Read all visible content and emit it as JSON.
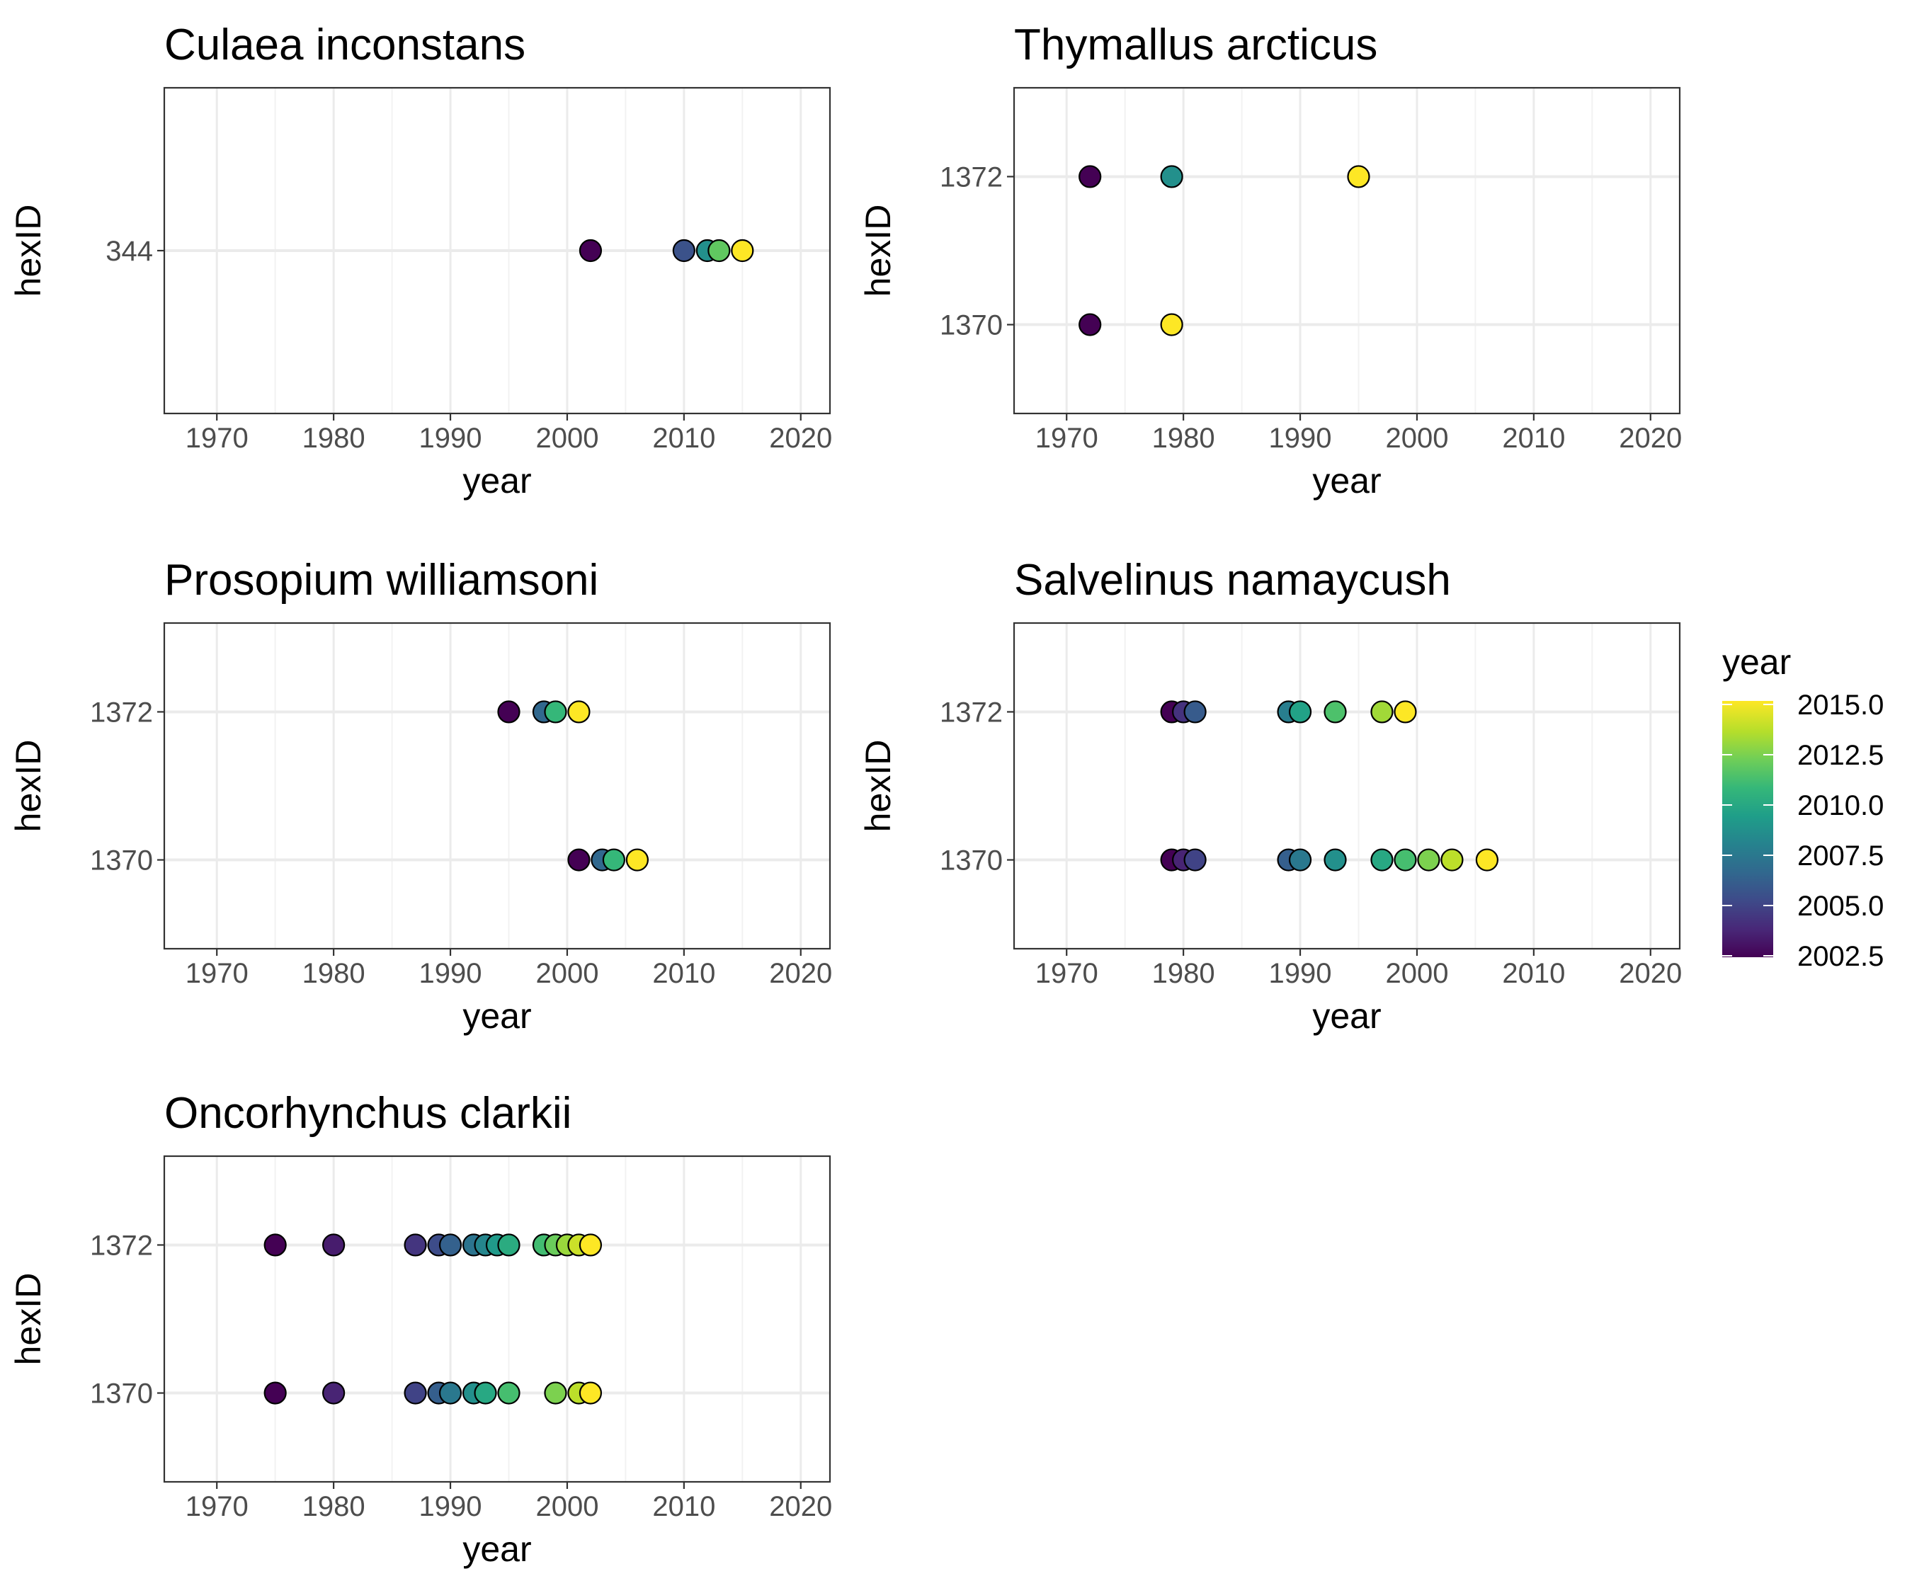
{
  "chart_data": [
    {
      "type": "scatter",
      "title": "Culaea inconstans",
      "xlabel": "year",
      "ylabel": "hexID",
      "x_ticks": [
        1970,
        1980,
        1990,
        2000,
        2010,
        2020
      ],
      "xlim": [
        1965.5,
        2022.5
      ],
      "y_categories": [
        "344"
      ],
      "grid": true,
      "series": [
        {
          "hexID": "344",
          "x": [
            2002,
            2010,
            2012,
            2013,
            2015
          ]
        }
      ]
    },
    {
      "type": "scatter",
      "title": "Thymallus arcticus",
      "xlabel": "year",
      "ylabel": "hexID",
      "x_ticks": [
        1970,
        1980,
        1990,
        2000,
        2010,
        2020
      ],
      "xlim": [
        1965.5,
        2022.5
      ],
      "y_categories": [
        "1370",
        "1372"
      ],
      "grid": true,
      "series": [
        {
          "hexID": "1372",
          "x": [
            1972,
            1979,
            1995
          ]
        },
        {
          "hexID": "1370",
          "x": [
            1972,
            1979
          ]
        }
      ]
    },
    {
      "type": "scatter",
      "title": "Prosopium williamsoni",
      "xlabel": "year",
      "ylabel": "hexID",
      "x_ticks": [
        1970,
        1980,
        1990,
        2000,
        2010,
        2020
      ],
      "xlim": [
        1965.5,
        2022.5
      ],
      "y_categories": [
        "1370",
        "1372"
      ],
      "grid": true,
      "series": [
        {
          "hexID": "1372",
          "x": [
            1995,
            1998,
            1999,
            2001
          ]
        },
        {
          "hexID": "1370",
          "x": [
            2001,
            2003,
            2004,
            2006
          ]
        }
      ]
    },
    {
      "type": "scatter",
      "title": "Salvelinus namaycush",
      "xlabel": "year",
      "ylabel": "hexID",
      "x_ticks": [
        1970,
        1980,
        1990,
        2000,
        2010,
        2020
      ],
      "xlim": [
        1965.5,
        2022.5
      ],
      "y_categories": [
        "1370",
        "1372"
      ],
      "grid": true,
      "series": [
        {
          "hexID": "1372",
          "x": [
            1979,
            1980,
            1981,
            1989,
            1990,
            1993,
            1997,
            1999
          ]
        },
        {
          "hexID": "1370",
          "x": [
            1979,
            1980,
            1981,
            1989,
            1990,
            1993,
            1997,
            1999,
            2001,
            2003,
            2006
          ]
        }
      ]
    },
    {
      "type": "scatter",
      "title": "Oncorhynchus clarkii",
      "xlabel": "year",
      "ylabel": "hexID",
      "x_ticks": [
        1970,
        1980,
        1990,
        2000,
        2010,
        2020
      ],
      "xlim": [
        1965.5,
        2022.5
      ],
      "y_categories": [
        "1370",
        "1372"
      ],
      "grid": true,
      "series": [
        {
          "hexID": "1372",
          "x": [
            1975,
            1980,
            1987,
            1989,
            1990,
            1992,
            1993,
            1994,
            1995,
            1998,
            1999,
            2000,
            2001,
            2002
          ]
        },
        {
          "hexID": "1370",
          "x": [
            1975,
            1980,
            1987,
            1989,
            1990,
            1992,
            1993,
            1995,
            1999,
            2001,
            2002
          ]
        }
      ]
    }
  ],
  "legend": {
    "title": "year",
    "placement": "right",
    "labels": [
      "2015.0",
      "2012.5",
      "2010.0",
      "2007.5",
      "2005.0",
      "2002.5"
    ],
    "colors": [
      "#440154",
      "#482878",
      "#3e4a89",
      "#31688e",
      "#26828e",
      "#1f9e89",
      "#35b779",
      "#6ece58",
      "#b5de2b",
      "#fde725"
    ]
  }
}
